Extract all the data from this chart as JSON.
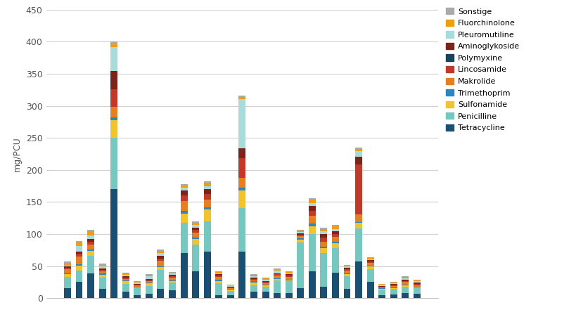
{
  "n_countries": 31,
  "series": {
    "Tetracycline": [
      15,
      25,
      38,
      14,
      170,
      10,
      5,
      7,
      14,
      12,
      70,
      42,
      72,
      5,
      5,
      72,
      10,
      10,
      8,
      8,
      15,
      42,
      18,
      40,
      14,
      57,
      25,
      4,
      6,
      8,
      7
    ],
    "Penicilline": [
      18,
      18,
      28,
      18,
      80,
      12,
      10,
      12,
      30,
      12,
      48,
      42,
      48,
      18,
      6,
      68,
      10,
      8,
      20,
      18,
      72,
      58,
      52,
      38,
      20,
      52,
      20,
      8,
      8,
      10,
      8
    ],
    "Sulfonamide": [
      4,
      8,
      8,
      4,
      28,
      4,
      2,
      4,
      4,
      2,
      14,
      8,
      18,
      4,
      2,
      28,
      4,
      2,
      2,
      2,
      4,
      12,
      8,
      8,
      3,
      8,
      4,
      2,
      2,
      2,
      2
    ],
    "Trimethoprim": [
      2,
      2,
      2,
      2,
      4,
      2,
      1,
      1,
      2,
      2,
      4,
      2,
      4,
      2,
      1,
      4,
      2,
      1,
      1,
      1,
      2,
      4,
      2,
      2,
      2,
      2,
      2,
      1,
      1,
      1,
      1
    ],
    "Makrolide": [
      6,
      12,
      8,
      4,
      16,
      2,
      2,
      2,
      8,
      4,
      16,
      8,
      12,
      4,
      2,
      16,
      2,
      2,
      4,
      4,
      4,
      12,
      8,
      8,
      4,
      12,
      4,
      2,
      2,
      4,
      2
    ],
    "Lincosamide": [
      2,
      4,
      4,
      2,
      28,
      2,
      1,
      2,
      4,
      2,
      8,
      4,
      8,
      2,
      1,
      30,
      2,
      2,
      2,
      2,
      2,
      8,
      6,
      4,
      2,
      78,
      2,
      1,
      2,
      2,
      2
    ],
    "Polymyxine": [
      0,
      0,
      0,
      0,
      0,
      0,
      0,
      0,
      0,
      0,
      0,
      0,
      0,
      0,
      0,
      0,
      0,
      0,
      0,
      0,
      0,
      0,
      0,
      0,
      0,
      0,
      0,
      0,
      0,
      0,
      0
    ],
    "Aminoglykoside": [
      2,
      4,
      4,
      2,
      28,
      2,
      1,
      2,
      4,
      2,
      8,
      4,
      8,
      2,
      1,
      16,
      2,
      2,
      2,
      2,
      2,
      8,
      6,
      4,
      2,
      12,
      2,
      1,
      1,
      2,
      2
    ],
    "Pleuromutiline": [
      2,
      8,
      6,
      4,
      38,
      2,
      2,
      4,
      4,
      2,
      4,
      4,
      4,
      2,
      2,
      76,
      2,
      2,
      4,
      2,
      2,
      4,
      4,
      4,
      2,
      8,
      2,
      2,
      1,
      2,
      2
    ],
    "Fluorchinolone": [
      4,
      6,
      6,
      2,
      4,
      2,
      2,
      2,
      4,
      2,
      4,
      4,
      6,
      2,
      1,
      4,
      2,
      2,
      2,
      2,
      2,
      6,
      4,
      4,
      2,
      4,
      2,
      1,
      1,
      2,
      2
    ],
    "Sonstige": [
      2,
      2,
      2,
      2,
      4,
      2,
      1,
      1,
      2,
      1,
      2,
      2,
      2,
      1,
      0,
      2,
      1,
      1,
      1,
      1,
      1,
      2,
      2,
      2,
      1,
      2,
      1,
      0,
      1,
      1,
      1
    ]
  },
  "colors": {
    "Tetracycline": "#1b4f72",
    "Penicilline": "#76c7c0",
    "Sulfonamide": "#f0c330",
    "Trimethoprim": "#2e86c1",
    "Makrolide": "#e67e22",
    "Lincosamide": "#c0392b",
    "Polymyxine": "#154360",
    "Aminoglykoside": "#7b241c",
    "Pleuromutiline": "#a8dbd9",
    "Fluorchinolone": "#f39c12",
    "Sonstige": "#aaaaaa"
  },
  "stack_order": [
    "Tetracycline",
    "Penicilline",
    "Sulfonamide",
    "Trimethoprim",
    "Makrolide",
    "Lincosamide",
    "Polymyxine",
    "Aminoglykoside",
    "Pleuromutiline",
    "Fluorchinolone",
    "Sonstige"
  ],
  "legend_order": [
    "Sonstige",
    "Fluorchinolone",
    "Pleuromutiline",
    "Aminoglykoside",
    "Polymyxine",
    "Lincosamide",
    "Makrolide",
    "Trimethoprim",
    "Sulfonamide",
    "Penicilline",
    "Tetracycline"
  ],
  "ylabel": "mg/PCU",
  "ylim": [
    0,
    450
  ],
  "yticks": [
    0,
    50,
    100,
    150,
    200,
    250,
    300,
    350,
    400,
    450
  ],
  "bar_width": 0.6,
  "background_color": "#ffffff",
  "grid_color": "#d0d0d0",
  "legend_fontsize": 8,
  "ylabel_fontsize": 9,
  "tick_fontsize": 9
}
